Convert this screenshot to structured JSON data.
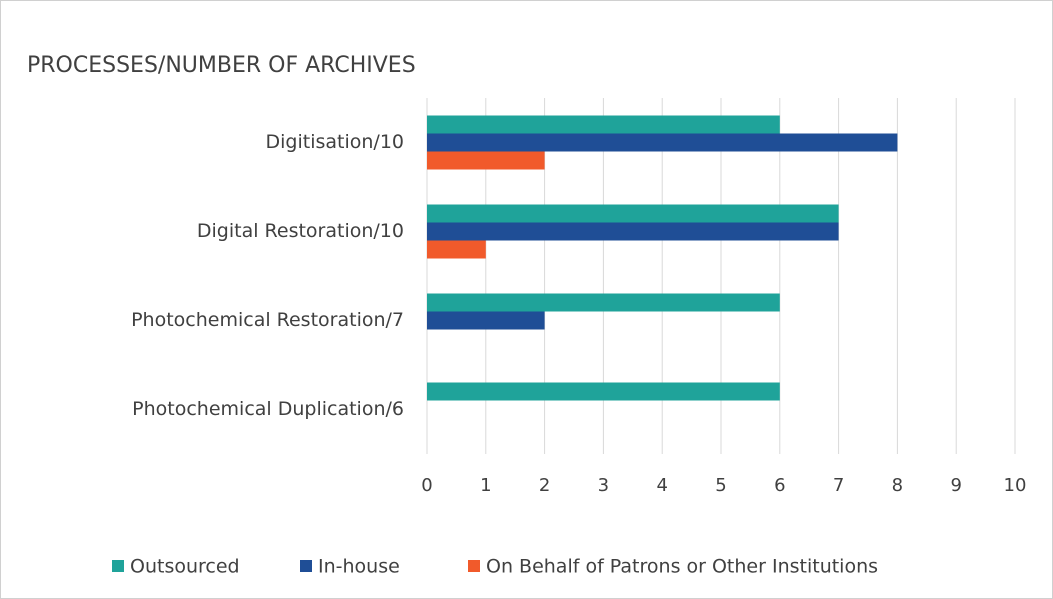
{
  "chart_data": {
    "type": "barh",
    "title": "PROCESSES/NUMBER OF ARCHIVES",
    "categories": [
      "Digitisation/10",
      "Digital Restoration/10",
      "Photochemical Restoration/7",
      "Photochemical Duplication/6"
    ],
    "series": [
      {
        "name": "Outsourced",
        "color": "#1fa39a",
        "values": [
          6,
          7,
          6,
          6
        ]
      },
      {
        "name": "In-house",
        "color": "#1f4e96",
        "values": [
          8,
          7,
          2,
          0
        ]
      },
      {
        "name": "On Behalf of Patrons or Other Institutions",
        "color": "#f15a2b",
        "values": [
          2,
          1,
          0,
          0
        ]
      }
    ],
    "xlim": [
      0,
      10
    ],
    "xticks": [
      0,
      1,
      2,
      3,
      4,
      5,
      6,
      7,
      8,
      9,
      10
    ],
    "grid": true,
    "legend": "bottom"
  }
}
